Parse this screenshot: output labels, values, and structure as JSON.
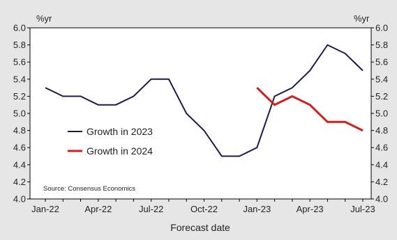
{
  "chart_data": {
    "type": "line",
    "xlabel": "Forecast date",
    "ylabel_left": "%yr",
    "ylabel_right": "%yr",
    "ylim": [
      4.0,
      6.0
    ],
    "ytick_step": 0.2,
    "yticks": [
      "4.0",
      "4.2",
      "4.4",
      "4.6",
      "4.8",
      "5.0",
      "5.2",
      "5.4",
      "5.6",
      "5.8",
      "6.0"
    ],
    "x": [
      "Jan-22",
      "Feb-22",
      "Mar-22",
      "Apr-22",
      "May-22",
      "Jun-22",
      "Jul-22",
      "Aug-22",
      "Sep-22",
      "Oct-22",
      "Nov-22",
      "Dec-22",
      "Jan-23",
      "Feb-23",
      "Mar-23",
      "Apr-23",
      "May-23",
      "Jun-23",
      "Jul-23"
    ],
    "xtick_labels": [
      "Jan-22",
      "Apr-22",
      "Jul-22",
      "Oct-22",
      "Jan-23",
      "Apr-23",
      "Jul-23"
    ],
    "series": [
      {
        "name": "Growth in 2023",
        "color": "#1c1c4a",
        "values": [
          5.3,
          5.2,
          5.2,
          5.1,
          5.1,
          5.2,
          5.4,
          5.4,
          5.0,
          4.8,
          4.5,
          4.5,
          4.6,
          5.2,
          5.3,
          5.5,
          5.8,
          5.7,
          5.5
        ]
      },
      {
        "name": "Growth in 2024",
        "color": "#d41c1c",
        "values": [
          null,
          null,
          null,
          null,
          null,
          null,
          null,
          null,
          null,
          null,
          null,
          null,
          5.3,
          5.1,
          5.2,
          5.1,
          4.9,
          4.9,
          4.8
        ]
      }
    ],
    "legend_position": "lower-left",
    "source": "Source: Consensus Economics",
    "grid": false
  }
}
